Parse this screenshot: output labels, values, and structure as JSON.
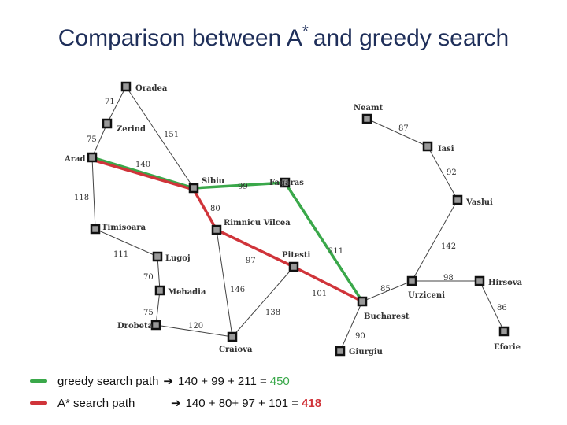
{
  "title": {
    "main": "Comparison between A",
    "star": "*",
    "rest": "and greedy search"
  },
  "nodes": [
    "Oradea",
    "Zerind",
    "Arad",
    "Sibiu",
    "Fagaras",
    "Timisoara",
    "Rimnicu Vilcea",
    "Lugoj",
    "Pitesti",
    "Mehadia",
    "Drobeta",
    "Craiova",
    "Bucharest",
    "Giurgiu",
    "Urziceni",
    "Hirsova",
    "Eforie",
    "Vaslui",
    "Iasi",
    "Neamt"
  ],
  "edge_weights": [
    71,
    75,
    151,
    140,
    118,
    111,
    70,
    75,
    120,
    99,
    80,
    97,
    146,
    138,
    211,
    101,
    90,
    85,
    98,
    86,
    142,
    92,
    87
  ],
  "legend": [
    {
      "label": "greedy search path",
      "equation": "140 + 99 + 211 =",
      "total": 450
    },
    {
      "label": "A* search path",
      "equation": "140 + 80+ 97 + 101 =",
      "total": 418
    }
  ]
}
